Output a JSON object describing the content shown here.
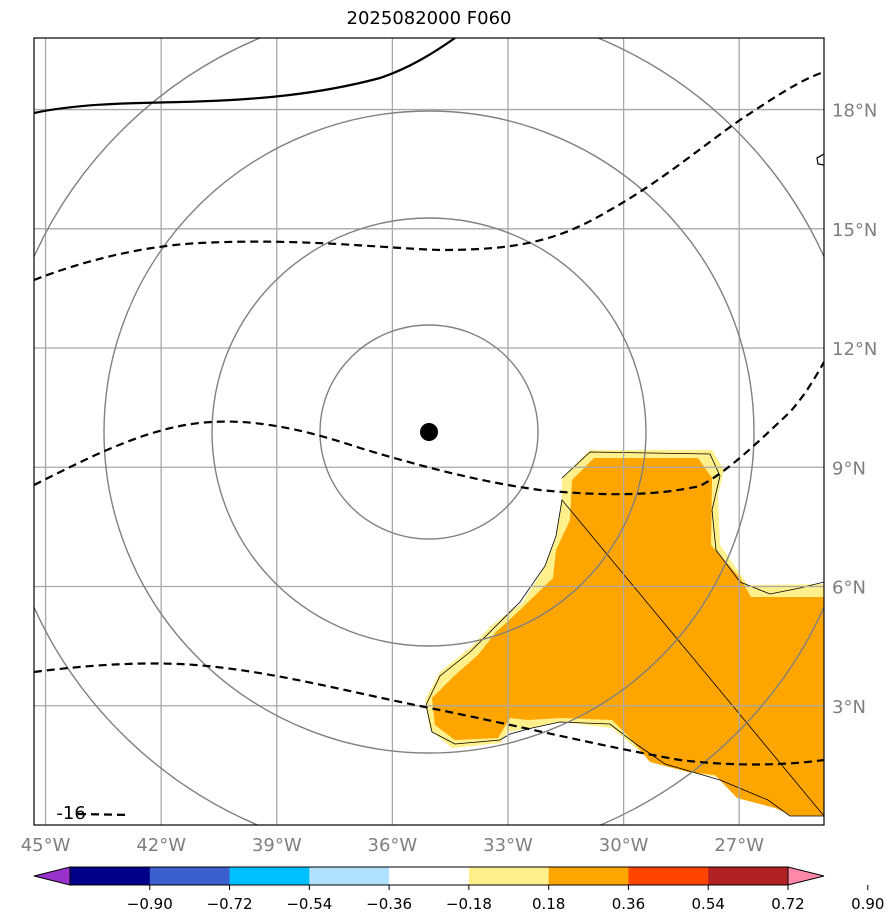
{
  "title": "2025082000 F060",
  "map": {
    "lon_range": [
      -45.3,
      -24.8
    ],
    "lat_range": [
      0.0,
      19.8
    ],
    "lon_tick_values": [
      -45,
      -42,
      -39,
      -36,
      -33,
      -30,
      -27
    ],
    "lat_tick_values": [
      3,
      6,
      9,
      12,
      15,
      18
    ],
    "lon_labels": [
      "45°W",
      "42°W",
      "39°W",
      "36°W",
      "33°W",
      "30°W",
      "27°W"
    ],
    "lat_labels": [
      "3°N",
      "6°N",
      "9°N",
      "12°N",
      "15°N",
      "18°N"
    ],
    "gridlines": true,
    "center": {
      "lon": -35.2,
      "lat": 10.2
    },
    "range_rings_count": 4,
    "contour_labels": [
      {
        "text": "-16",
        "lon": -44.2,
        "lat": 0.3
      }
    ]
  },
  "colorbar": {
    "colors": [
      "#9932cc",
      "#00008b",
      "#3a5fcd",
      "#00bfff",
      "#b0e2ff",
      "#ffffff",
      "#fff08c",
      "#ffa500",
      "#ff4500",
      "#b22222",
      "#ff88a8"
    ],
    "tick_labels": [
      "−0.90",
      "−0.72",
      "−0.54",
      "−0.36",
      "−0.18",
      "0.18",
      "0.36",
      "0.54",
      "0.72",
      "0.90"
    ],
    "extend": "both"
  },
  "colors": {
    "shade_outer": "#fff08c",
    "shade_inner": "#ffa500",
    "grid": "#a8a8a8",
    "ring": "#808080",
    "tick_label": "#7f7f7f"
  }
}
